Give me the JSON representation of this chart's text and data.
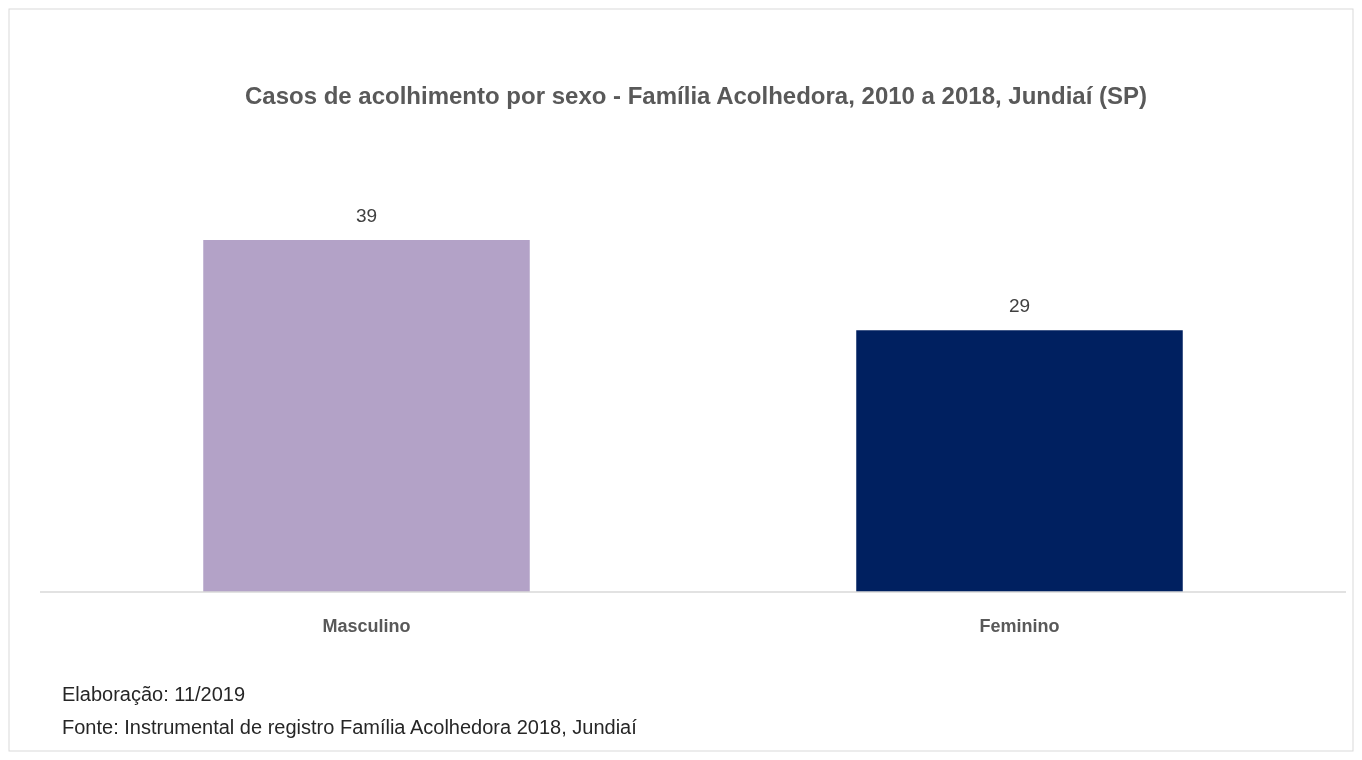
{
  "chart_data": {
    "type": "bar",
    "title": "Casos de acolhimento por sexo - Família Acolhedora, 2010 a 2018, Jundiaí (SP)",
    "categories": [
      "Masculino",
      "Feminino"
    ],
    "values": [
      39,
      29
    ],
    "colors": [
      "#b3a2c7",
      "#002060"
    ],
    "data_labels": true,
    "annotations": [
      "Elaboração: 11/2019",
      "Fonte: Instrumental de registro Família Acolhedora 2018, Jundiaí"
    ]
  }
}
